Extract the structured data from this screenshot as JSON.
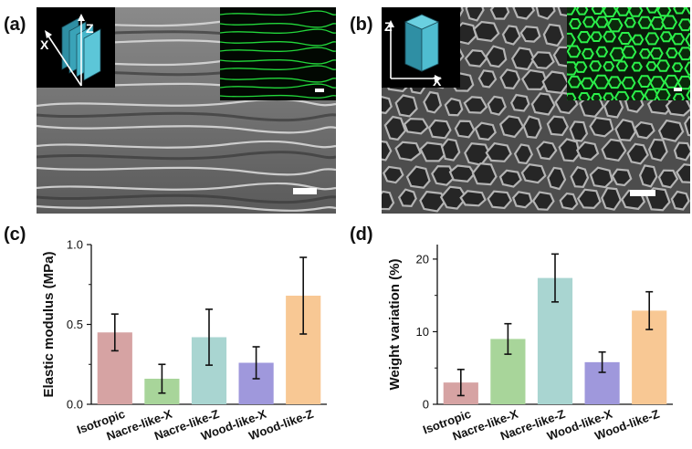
{
  "panels": {
    "a": {
      "label": "(a)",
      "axes": {
        "x": "X",
        "z": "Z"
      }
    },
    "b": {
      "label": "(b)",
      "axes": {
        "x": "X",
        "z": "Z"
      }
    },
    "c": {
      "label": "(c)"
    },
    "d": {
      "label": "(d)"
    }
  },
  "chart_data": [
    {
      "type": "bar",
      "panel": "c",
      "categories": [
        "Isotropic",
        "Nacre-like-X",
        "Nacre-like-Z",
        "Wood-like-X",
        "Wood-like-Z"
      ],
      "values": [
        0.45,
        0.16,
        0.42,
        0.26,
        0.68
      ],
      "errors": [
        0.115,
        0.09,
        0.175,
        0.1,
        0.24
      ],
      "colors": [
        "#d6a3a3",
        "#a8d59a",
        "#a9d5d1",
        "#9f98dc",
        "#f8c894"
      ],
      "xlabel": "",
      "ylabel": "Elastic modulus (MPa)",
      "ylim": [
        0,
        1.0
      ],
      "yticks": [
        0.0,
        0.5,
        1.0
      ],
      "yticklabels": [
        "0.0",
        "0.5",
        "1.0"
      ],
      "grid": false
    },
    {
      "type": "bar",
      "panel": "d",
      "categories": [
        "Isotropic",
        "Nacre-like-X",
        "Nacre-like-Z",
        "Wood-like-X",
        "Wood-like-Z"
      ],
      "values": [
        3.0,
        9.0,
        17.4,
        5.8,
        12.9
      ],
      "errors": [
        1.8,
        2.1,
        3.3,
        1.4,
        2.6
      ],
      "colors": [
        "#d6a3a3",
        "#a8d59a",
        "#a9d5d1",
        "#9f98dc",
        "#f8c894"
      ],
      "xlabel": "",
      "ylabel": "Weight variation (%)",
      "ylim": [
        0,
        22
      ],
      "yticks": [
        0,
        10,
        20
      ],
      "yticklabels": [
        "0",
        "10",
        "20"
      ],
      "grid": false
    }
  ]
}
